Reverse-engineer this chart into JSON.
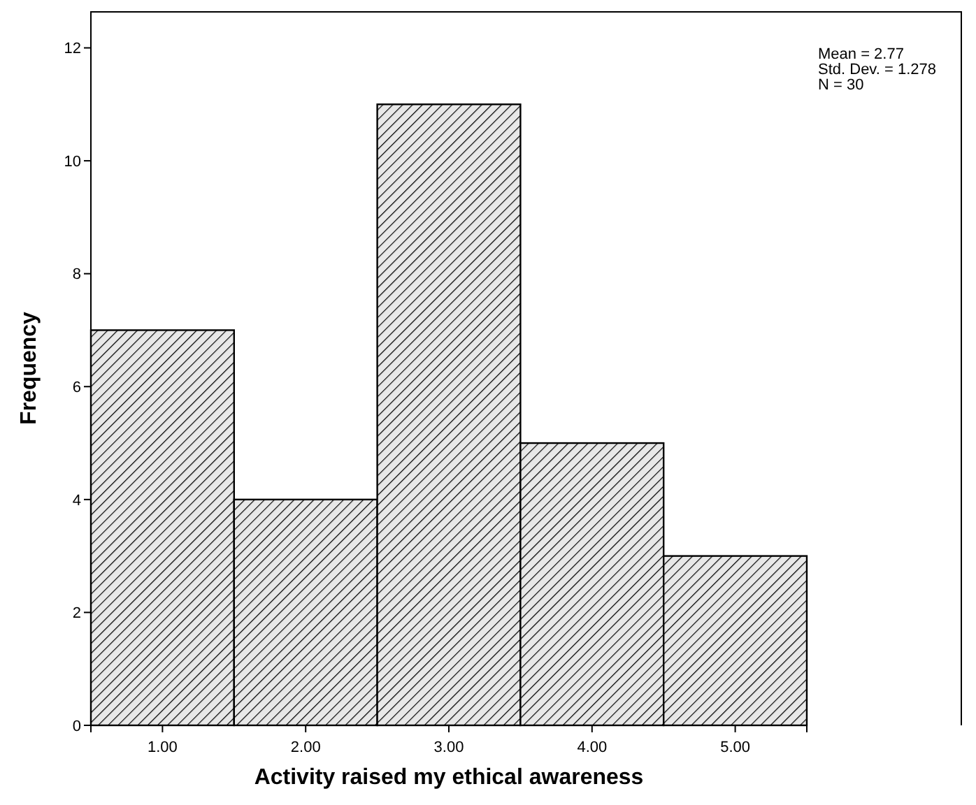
{
  "chart_data": {
    "type": "histogram",
    "xlabel": "Activity raised my ethical awareness",
    "ylabel": "Frequency",
    "bins": [
      0.5,
      1.5,
      2.5,
      3.5,
      4.5,
      5.5
    ],
    "values": [
      7,
      4,
      11,
      5,
      3
    ],
    "color": "#000000",
    "xlim": [
      0.5,
      5.5
    ],
    "ylim": [
      0,
      12.65
    ],
    "xticks": [
      {
        "value": 1,
        "label": "1.00"
      },
      {
        "value": 2,
        "label": "2.00"
      },
      {
        "value": 3,
        "label": "3.00"
      },
      {
        "value": 4,
        "label": "4.00"
      },
      {
        "value": 5,
        "label": "5.00"
      }
    ],
    "yticks": [
      0,
      2,
      4,
      6,
      8,
      10,
      12
    ],
    "annotations": [
      "Mean = 2.77",
      "Std. Dev. = 1.278",
      "N = 30"
    ]
  }
}
